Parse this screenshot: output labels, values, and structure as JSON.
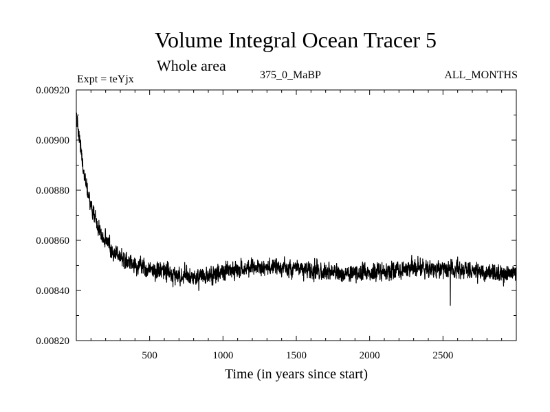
{
  "chart_data": {
    "type": "line",
    "title": "Volume Integral Ocean Tracer 5",
    "subtitle": "Whole area",
    "experiment_label": "Expt = teYjx",
    "period_label": "375_0_MaBP",
    "months_label": "ALL_MONTHS",
    "xlabel": "Time (in years since start)",
    "ylabel": "",
    "xlim": [
      0,
      3000
    ],
    "ylim": [
      0.0082,
      0.0092
    ],
    "xticks": [
      500,
      1000,
      1500,
      2000,
      2500
    ],
    "xtick_labels": [
      "500",
      "1000",
      "1500",
      "2000",
      "2500"
    ],
    "yticks": [
      0.0082,
      0.0084,
      0.0086,
      0.0088,
      0.009,
      0.0092
    ],
    "ytick_labels": [
      "0.00820",
      "0.00840",
      "0.00860",
      "0.00880",
      "0.00900",
      "0.00920"
    ],
    "series": [
      {
        "name": "Volume Integral Ocean Tracer 5",
        "color": "#000000",
        "x_start": 0,
        "x_step": 1,
        "model": {
          "description": "noisy exponential decay to plateau",
          "initial": 0.00911,
          "plateau": 0.00848,
          "decay_years": 110,
          "noise_amplitude": 5e-05
        },
        "key_points": [
          {
            "x": 0,
            "y": 0.00911
          },
          {
            "x": 100,
            "y": 0.00875
          },
          {
            "x": 200,
            "y": 0.0086
          },
          {
            "x": 400,
            "y": 0.00851
          },
          {
            "x": 800,
            "y": 0.00846
          },
          {
            "x": 1500,
            "y": 0.00849
          },
          {
            "x": 2000,
            "y": 0.00848
          },
          {
            "x": 2550,
            "y": 0.00848
          },
          {
            "x": 3000,
            "y": 0.00848
          }
        ],
        "min_spike": {
          "x": 2550,
          "y": 0.00834
        }
      }
    ]
  }
}
